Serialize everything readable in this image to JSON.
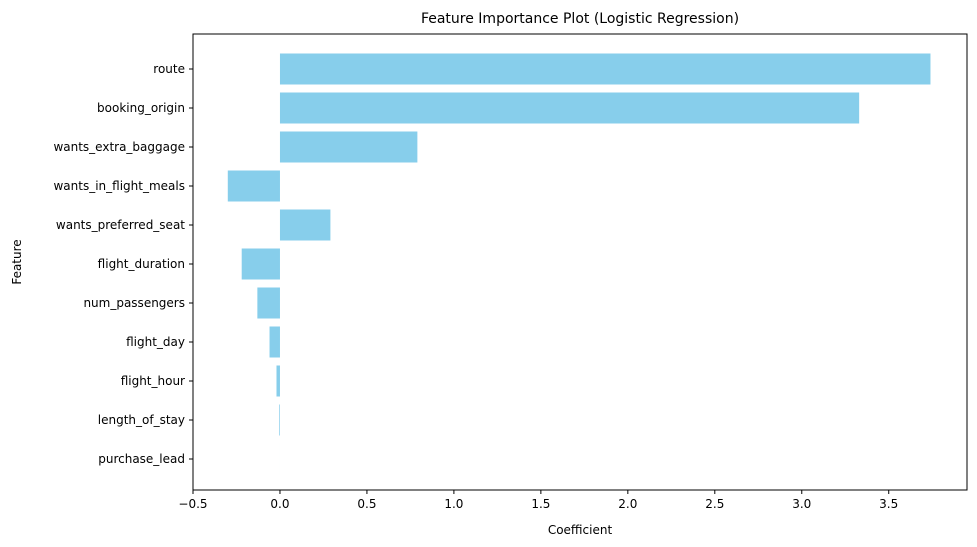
{
  "chart_data": {
    "type": "bar",
    "orientation": "horizontal",
    "title": "Feature Importance Plot (Logistic Regression)",
    "xlabel": "Coefficient",
    "ylabel": "Feature",
    "xlim": [
      -0.5,
      3.95
    ],
    "xticks": [
      -0.5,
      0.0,
      0.5,
      1.0,
      1.5,
      2.0,
      2.5,
      3.0,
      3.5
    ],
    "xtick_labels": [
      "−0.5",
      "0.0",
      "0.5",
      "1.0",
      "1.5",
      "2.0",
      "2.5",
      "3.0",
      "3.5"
    ],
    "categories": [
      "route",
      "booking_origin",
      "wants_extra_baggage",
      "wants_in_flight_meals",
      "wants_preferred_seat",
      "flight_duration",
      "num_passengers",
      "flight_day",
      "flight_hour",
      "length_of_stay",
      "purchase_lead"
    ],
    "values": [
      3.74,
      3.33,
      0.79,
      -0.3,
      0.29,
      -0.22,
      -0.13,
      -0.06,
      -0.02,
      -0.004,
      0.0
    ],
    "bar_color": "#87ceeb",
    "grid": false,
    "legend": "none"
  }
}
